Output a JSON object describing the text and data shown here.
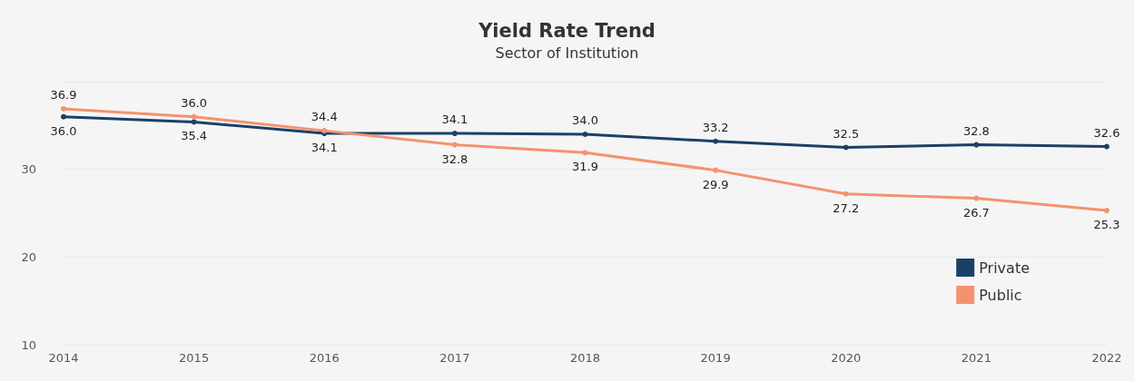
{
  "chart_data": {
    "type": "line",
    "title": "Yield Rate Trend",
    "subtitle": "Sector of Institution",
    "categories": [
      "2014",
      "2015",
      "2016",
      "2017",
      "2018",
      "2019",
      "2020",
      "2021",
      "2022"
    ],
    "series": [
      {
        "name": "Private",
        "color": "#1b4068",
        "values": [
          36.0,
          35.4,
          34.1,
          34.1,
          34.0,
          33.2,
          32.5,
          32.8,
          32.6
        ],
        "value_labels": [
          "36.0",
          "35.4",
          "34.1",
          "34.1",
          "34.0",
          "33.2",
          "32.5",
          "32.8",
          "32.6"
        ]
      },
      {
        "name": "Public",
        "color": "#f4926f",
        "values": [
          36.9,
          36.0,
          34.4,
          32.8,
          31.9,
          29.9,
          27.2,
          26.7,
          25.3
        ],
        "value_labels": [
          "36.9",
          "36.0",
          "34.4",
          "32.8",
          "31.9",
          "29.9",
          "27.2",
          "26.7",
          "25.3"
        ]
      }
    ],
    "ylim": [
      10,
      40
    ],
    "yticks": [
      10,
      20,
      30,
      {
        "value": 40,
        "label": null
      }
    ],
    "grid": "y",
    "legend": "bottom right",
    "marker": "circle",
    "line_style": "solid"
  }
}
